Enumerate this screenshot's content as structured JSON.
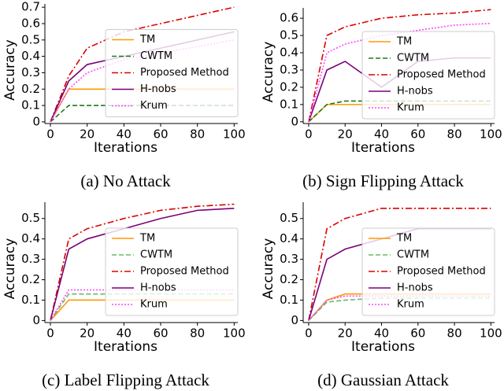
{
  "chart_data": [
    {
      "type": "line",
      "caption": "(a) No Attack",
      "xlabel": "Iterations",
      "ylabel": "Accuracy",
      "x": [
        0,
        10,
        20,
        40,
        60,
        80,
        100
      ],
      "xlim": [
        -3,
        102
      ],
      "xticks": [
        0,
        20,
        40,
        60,
        80,
        100
      ],
      "ylim": [
        -0.01,
        0.72
      ],
      "yticks": [
        0.0,
        0.1,
        0.2,
        0.3,
        0.4,
        0.5,
        0.6,
        0.7
      ],
      "legend": "center right",
      "series": [
        {
          "name": "TM",
          "color": "#ff9900",
          "linestyle": "solid",
          "values": [
            0,
            0.2,
            0.2,
            0.2,
            0.2,
            0.2,
            0.2
          ]
        },
        {
          "name": "CWTM",
          "color": "#1a7a1a",
          "linestyle": "dashed",
          "values": [
            0,
            0.1,
            0.1,
            0.1,
            0.1,
            0.1,
            0.1
          ]
        },
        {
          "name": "Proposed Method",
          "color": "#dd0000",
          "linestyle": "dashdot",
          "values": [
            0,
            0.28,
            0.45,
            0.55,
            0.6,
            0.65,
            0.7
          ]
        },
        {
          "name": "H-nobs",
          "color": "#7a007a",
          "linestyle": "solid",
          "values": [
            0,
            0.25,
            0.35,
            0.4,
            0.45,
            0.5,
            0.55
          ]
        },
        {
          "name": "Krum",
          "color": "#ff44ff",
          "linestyle": "dotted",
          "values": [
            0,
            0.2,
            0.3,
            0.38,
            0.42,
            0.46,
            0.5
          ]
        }
      ]
    },
    {
      "type": "line",
      "caption": "(b) Sign Flipping Attack",
      "xlabel": "Iterations",
      "ylabel": "Accuracy",
      "x": [
        0,
        10,
        20,
        40,
        60,
        80,
        100
      ],
      "xlim": [
        -3,
        102
      ],
      "xticks": [
        0,
        20,
        40,
        60,
        80,
        100
      ],
      "ylim": [
        -0.01,
        0.66
      ],
      "yticks": [
        0.0,
        0.1,
        0.2,
        0.3,
        0.4,
        0.5,
        0.6
      ],
      "legend": "center right",
      "series": [
        {
          "name": "TM",
          "color": "#ff9900",
          "linestyle": "solid",
          "values": [
            0,
            0.1,
            0.1,
            0.1,
            0.1,
            0.1,
            0.1
          ]
        },
        {
          "name": "CWTM",
          "color": "#1a7a1a",
          "linestyle": "dashed",
          "values": [
            0,
            0.1,
            0.12,
            0.12,
            0.12,
            0.12,
            0.12
          ]
        },
        {
          "name": "Proposed Method",
          "color": "#dd0000",
          "linestyle": "dashdot",
          "values": [
            0,
            0.5,
            0.55,
            0.6,
            0.62,
            0.63,
            0.65
          ]
        },
        {
          "name": "H-nobs",
          "color": "#7a007a",
          "linestyle": "solid",
          "values": [
            0,
            0.3,
            0.35,
            0.2,
            0.35,
            0.37,
            0.37
          ]
        },
        {
          "name": "Krum",
          "color": "#ff44ff",
          "linestyle": "dotted",
          "values": [
            0,
            0.4,
            0.45,
            0.5,
            0.53,
            0.56,
            0.57
          ]
        }
      ]
    },
    {
      "type": "line",
      "caption": "(c) Label Flipping Attack",
      "xlabel": "Iterations",
      "ylabel": "Accuracy",
      "x": [
        0,
        10,
        20,
        40,
        60,
        80,
        100
      ],
      "xlim": [
        -3,
        102
      ],
      "xticks": [
        0,
        20,
        40,
        60,
        80,
        100
      ],
      "ylim": [
        -0.01,
        0.58
      ],
      "yticks": [
        0.0,
        0.1,
        0.2,
        0.3,
        0.4,
        0.5
      ],
      "legend": "center right",
      "series": [
        {
          "name": "TM",
          "color": "#ff9900",
          "linestyle": "solid",
          "values": [
            0,
            0.1,
            0.1,
            0.1,
            0.1,
            0.1,
            0.1
          ]
        },
        {
          "name": "CWTM",
          "color": "#66bb66",
          "linestyle": "dashed",
          "values": [
            0,
            0.13,
            0.13,
            0.13,
            0.13,
            0.13,
            0.13
          ]
        },
        {
          "name": "Proposed Method",
          "color": "#dd0000",
          "linestyle": "dashdot",
          "values": [
            0,
            0.4,
            0.45,
            0.5,
            0.54,
            0.56,
            0.57
          ]
        },
        {
          "name": "H-nobs",
          "color": "#7a007a",
          "linestyle": "solid",
          "values": [
            0,
            0.35,
            0.4,
            0.45,
            0.5,
            0.54,
            0.55
          ]
        },
        {
          "name": "Krum",
          "color": "#ff44ff",
          "linestyle": "dotted",
          "values": [
            0,
            0.15,
            0.15,
            0.15,
            0.15,
            0.15,
            0.15
          ]
        }
      ]
    },
    {
      "type": "line",
      "caption": "(d) Gaussian Attack",
      "xlabel": "Iterations",
      "ylabel": "Accuracy",
      "x": [
        0,
        10,
        20,
        40,
        60,
        80,
        100
      ],
      "xlim": [
        -3,
        102
      ],
      "xticks": [
        0,
        20,
        40,
        60,
        80,
        100
      ],
      "ylim": [
        -0.01,
        0.58
      ],
      "yticks": [
        0.0,
        0.1,
        0.2,
        0.3,
        0.4,
        0.5
      ],
      "legend": "center right",
      "series": [
        {
          "name": "TM",
          "color": "#ff9900",
          "linestyle": "solid",
          "values": [
            0,
            0.1,
            0.13,
            0.13,
            0.13,
            0.13,
            0.13
          ]
        },
        {
          "name": "CWTM",
          "color": "#66bb66",
          "linestyle": "dashed",
          "values": [
            0,
            0.09,
            0.1,
            0.11,
            0.11,
            0.11,
            0.11
          ]
        },
        {
          "name": "Proposed Method",
          "color": "#dd0000",
          "linestyle": "dashdot",
          "values": [
            0,
            0.45,
            0.5,
            0.55,
            0.55,
            0.55,
            0.55
          ]
        },
        {
          "name": "H-nobs",
          "color": "#7a007a",
          "linestyle": "solid",
          "values": [
            0,
            0.3,
            0.35,
            0.4,
            0.45,
            0.45,
            0.45
          ]
        },
        {
          "name": "Krum",
          "color": "#ff44ff",
          "linestyle": "dotted",
          "values": [
            0,
            0.1,
            0.12,
            0.12,
            0.12,
            0.12,
            0.12
          ]
        }
      ]
    }
  ]
}
